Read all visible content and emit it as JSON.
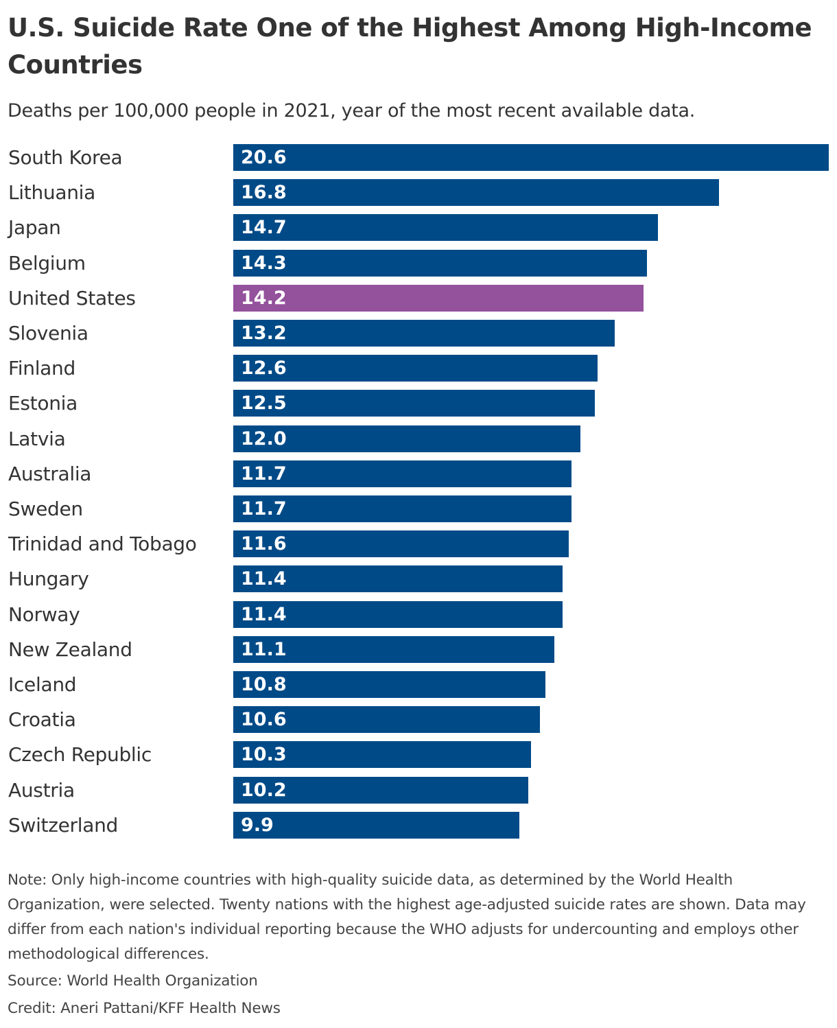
{
  "chart_data": {
    "type": "bar",
    "orientation": "horizontal",
    "title": "U.S. Suicide Rate One of the Highest Among High-Income Countries",
    "subtitle": "Deaths per 100,000 people in 2021, year of the most recent available data.",
    "categories": [
      "South Korea",
      "Lithuania",
      "Japan",
      "Belgium",
      "United States",
      "Slovenia",
      "Finland",
      "Estonia",
      "Latvia",
      "Australia",
      "Sweden",
      "Trinidad and Tobago",
      "Hungary",
      "Norway",
      "New Zealand",
      "Iceland",
      "Croatia",
      "Czech Republic",
      "Austria",
      "Switzerland"
    ],
    "values": [
      20.6,
      16.8,
      14.7,
      14.3,
      14.2,
      13.2,
      12.6,
      12.5,
      12.0,
      11.7,
      11.7,
      11.6,
      11.4,
      11.4,
      11.1,
      10.8,
      10.6,
      10.3,
      10.2,
      9.9
    ],
    "value_labels": [
      "20.6",
      "16.8",
      "14.7",
      "14.3",
      "14.2",
      "13.2",
      "12.6",
      "12.5",
      "12.0",
      "11.7",
      "11.7",
      "11.6",
      "11.4",
      "11.4",
      "11.1",
      "10.8",
      "10.6",
      "10.3",
      "10.2",
      "9.9"
    ],
    "highlight": "United States",
    "xlim": [
      0,
      20.6
    ],
    "grid": false,
    "colors": {
      "default": "#004a87",
      "highlight": "#94519c"
    }
  },
  "footer": {
    "note": "Note: Only high-income countries with high-quality suicide data, as determined by the World Health Organization, were selected. Twenty nations with the highest age-adjusted suicide rates are shown. Data may differ from each nation's individual reporting because the WHO adjusts for undercounting and employs other methodological differences.",
    "source": "Source: World Health Organization",
    "credit": "Credit: Aneri Pattani/KFF Health News"
  }
}
